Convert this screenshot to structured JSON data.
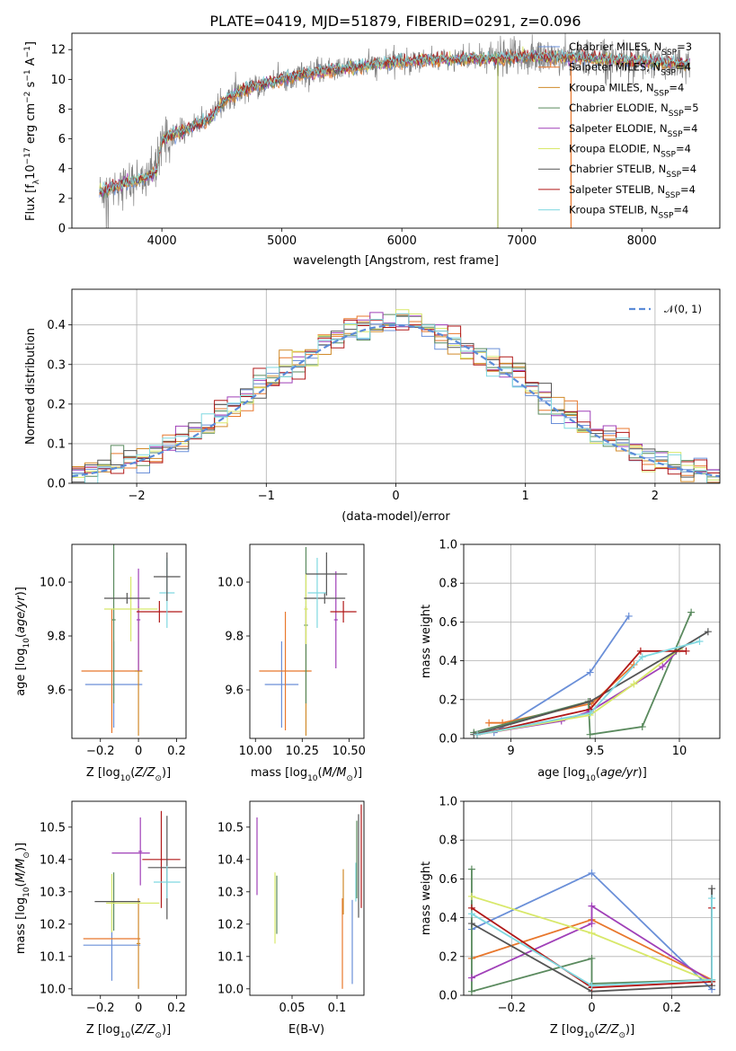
{
  "title": "PLATE=0419, MJD=51879, FIBERID=0291, z=0.096",
  "colors": {
    "Chabrier MILES": "#6a8fd8",
    "Salpeter MILES": "#e8772c",
    "Kroupa MILES": "#d08a2a",
    "Chabrier ELODIE": "#5a8a5e",
    "Salpeter ELODIE": "#a040b8",
    "Kroupa ELODIE": "#d8e86a",
    "Chabrier STELIB": "#555555",
    "Salpeter STELIB": "#b01818",
    "Kroupa STELIB": "#7fd8e0",
    "data": "#808080",
    "gaussian": "#5b8bd8"
  },
  "chart_data": [
    {
      "type": "line",
      "id": "spectrum",
      "xlabel": "wavelength [Angstrom, rest frame]",
      "ylabel": "Flux [f_λ10^-17 erg cm^-2 s^-1 A^-1]",
      "xlim": [
        3250,
        8650
      ],
      "ylim": [
        0,
        13.1
      ],
      "xticks": [
        4000,
        5000,
        6000,
        7000,
        8000
      ],
      "yticks": [
        0,
        2,
        4,
        6,
        8,
        10,
        12
      ],
      "continuum": {
        "x": [
          3480,
          3550,
          3650,
          3750,
          3850,
          3950,
          4000,
          4100,
          4200,
          4300,
          4400,
          4500,
          4600,
          4700,
          4800,
          4900,
          5000,
          5100,
          5200,
          5300,
          5400,
          5500,
          5600,
          5700,
          5800,
          5900,
          6000,
          6200,
          6400,
          6600,
          6800,
          7000,
          7200,
          7400,
          7600,
          7800,
          8000,
          8200,
          8400
        ],
        "y": [
          2.4,
          2.6,
          2.9,
          3.1,
          3.4,
          3.7,
          5.9,
          6.3,
          6.6,
          7.0,
          7.3,
          8.4,
          9.0,
          9.3,
          9.6,
          9.8,
          10.0,
          10.2,
          10.4,
          10.5,
          10.6,
          10.7,
          10.8,
          10.9,
          11.0,
          11.1,
          11.2,
          11.3,
          11.3,
          11.4,
          11.4,
          11.5,
          11.5,
          11.5,
          11.4,
          11.3,
          11.2,
          11.1,
          11.0
        ]
      },
      "legend": [
        {
          "name": "Chabrier MILES, N_SSP=3",
          "label": "Chabrier MILES, N",
          "sub": "SSP",
          "tail": "=3",
          "color": "#6a8fd8"
        },
        {
          "name": "Salpeter MILES, N_SSP=4",
          "label": "Salpeter MILES, N",
          "sub": "SSP",
          "tail": "=4",
          "color": "#e8772c"
        },
        {
          "name": "Kroupa MILES, N_SSP=4",
          "label": "Kroupa MILES, N",
          "sub": "SSP",
          "tail": "=4",
          "color": "#d08a2a"
        },
        {
          "name": "Chabrier ELODIE, N_SSP=5",
          "label": "Chabrier ELODIE, N",
          "sub": "SSP",
          "tail": "=5",
          "color": "#5a8a5e"
        },
        {
          "name": "Salpeter ELODIE, N_SSP=4",
          "label": "Salpeter ELODIE, N",
          "sub": "SSP",
          "tail": "=4",
          "color": "#a040b8"
        },
        {
          "name": "Kroupa ELODIE, N_SSP=4",
          "label": "Kroupa ELODIE, N",
          "sub": "SSP",
          "tail": "=4",
          "color": "#d8e86a"
        },
        {
          "name": "Chabrier STELIB, N_SSP=4",
          "label": "Chabrier STELIB, N",
          "sub": "SSP",
          "tail": "=4",
          "color": "#555555"
        },
        {
          "name": "Salpeter STELIB, N_SSP=4",
          "label": "Salpeter STELIB, N",
          "sub": "SSP",
          "tail": "=4",
          "color": "#b01818"
        },
        {
          "name": "Kroupa STELIB, N_SSP=4",
          "label": "Kroupa STELIB, N",
          "sub": "SSP",
          "tail": "=4",
          "color": "#7fd8e0"
        }
      ],
      "spikes": [
        {
          "x": 6800,
          "color": "#a8b85a"
        },
        {
          "x": 7410,
          "color": "#e8772c"
        }
      ]
    },
    {
      "type": "histogram",
      "id": "residuals",
      "xlabel": "(data-model)/error",
      "ylabel": "Normed distribution",
      "xlim": [
        -2.5,
        2.5
      ],
      "ylim": [
        0,
        0.49
      ],
      "xticks": [
        -2,
        -1,
        0,
        1,
        2
      ],
      "yticks": [
        0.0,
        0.1,
        0.2,
        0.3,
        0.4
      ],
      "bin_width": 0.1,
      "grid": true,
      "legend": {
        "label": "N(0,1)",
        "placement": "top-right"
      }
    },
    {
      "type": "scatter",
      "id": "age_vs_Z",
      "xlabel": "Z [log10(Z/Z⊙)]",
      "ylabel": "age [log10(age/yr)]",
      "xlim": [
        -0.35,
        0.25
      ],
      "ylim": [
        9.42,
        10.14
      ],
      "xticks": [
        -0.2,
        0.0,
        0.2
      ],
      "yticks": [
        9.6,
        9.8,
        10.0
      ],
      "points": [
        {
          "model": "Chabrier MILES",
          "x": -0.13,
          "xerr": 0.15,
          "y": 9.62,
          "yerr": 0.16
        },
        {
          "model": "Salpeter MILES",
          "x": -0.14,
          "xerr": 0.16,
          "y": 9.67,
          "yerr": 0.23
        },
        {
          "model": "Kroupa MILES",
          "x": 0.0,
          "xerr": 0.02,
          "y": 9.67,
          "yerr": 0.24
        },
        {
          "model": "Chabrier ELODIE",
          "x": -0.13,
          "xerr": 0.01,
          "y": 9.86,
          "yerr": 0.31
        },
        {
          "model": "Salpeter ELODIE",
          "x": 0.0,
          "xerr": 0.01,
          "y": 9.86,
          "yerr": 0.19
        },
        {
          "model": "Kroupa ELODIE",
          "x": -0.04,
          "xerr": 0.14,
          "y": 9.9,
          "yerr": 0.12
        },
        {
          "model": "Chabrier STELIB",
          "x": -0.06,
          "xerr": 0.12,
          "y": 9.94,
          "yerr": 0.02
        },
        {
          "model": "Salpeter STELIB",
          "x": 0.11,
          "xerr": 0.12,
          "y": 9.89,
          "yerr": 0.04
        },
        {
          "model": "Kroupa STELIB",
          "x": 0.15,
          "xerr": 0.04,
          "y": 9.96,
          "yerr": 0.13
        },
        {
          "model": "Chabrier STELIB",
          "x": 0.15,
          "xerr": 0.07,
          "y": 10.02,
          "yerr": 0.09
        }
      ]
    },
    {
      "type": "scatter",
      "id": "age_vs_mass",
      "xlabel": "mass [log10(M/M⊙)]",
      "ylabel": "",
      "xlim": [
        9.97,
        10.58
      ],
      "ylim": [
        9.42,
        10.14
      ],
      "xticks": [
        10.0,
        10.25,
        10.5
      ],
      "yticks": [
        9.6,
        9.8,
        10.0
      ],
      "points": [
        {
          "model": "Chabrier MILES",
          "x": 10.14,
          "xerr": 0.09,
          "y": 9.62,
          "yerr": 0.16
        },
        {
          "model": "Salpeter MILES",
          "x": 10.16,
          "xerr": 0.14,
          "y": 9.67,
          "yerr": 0.22
        },
        {
          "model": "Kroupa MILES",
          "x": 10.27,
          "xerr": 0.01,
          "y": 9.67,
          "yerr": 0.24
        },
        {
          "model": "Chabrier ELODIE",
          "x": 10.27,
          "xerr": 0.01,
          "y": 9.84,
          "yerr": 0.29
        },
        {
          "model": "Salpeter ELODIE",
          "x": 10.43,
          "xerr": 0.01,
          "y": 9.86,
          "yerr": 0.18
        },
        {
          "model": "Kroupa ELODIE",
          "x": 10.27,
          "xerr": 0.01,
          "y": 9.9,
          "yerr": 0.13
        },
        {
          "model": "Chabrier STELIB",
          "x": 10.37,
          "xerr": 0.11,
          "y": 9.94,
          "yerr": 0.02
        },
        {
          "model": "Salpeter STELIB",
          "x": 10.47,
          "xerr": 0.07,
          "y": 9.89,
          "yerr": 0.04
        },
        {
          "model": "Kroupa STELIB",
          "x": 10.33,
          "xerr": 0.05,
          "y": 9.96,
          "yerr": 0.13
        },
        {
          "model": "Chabrier STELIB",
          "x": 10.38,
          "xerr": 0.11,
          "y": 10.03,
          "yerr": 0.08
        }
      ]
    },
    {
      "type": "line",
      "id": "weight_vs_age",
      "xlabel": "age [log10(age/yr)]",
      "ylabel": "mass weight",
      "xlim": [
        8.72,
        10.24
      ],
      "ylim": [
        0.0,
        1.0
      ],
      "xticks": [
        9.0,
        9.5,
        10.0
      ],
      "yticks": [
        0.0,
        0.2,
        0.4,
        0.6,
        0.8,
        1.0
      ],
      "grid": true,
      "series": [
        {
          "model": "Chabrier MILES",
          "x": [
            8.9,
            9.47,
            9.7
          ],
          "y": [
            0.03,
            0.34,
            0.63
          ]
        },
        {
          "model": "Salpeter MILES",
          "x": [
            8.87,
            8.95,
            9.48,
            9.73
          ],
          "y": [
            0.08,
            0.08,
            0.18,
            0.38
          ]
        },
        {
          "model": "Chabrier ELODIE",
          "x": [
            8.78,
            9.46,
            9.47,
            9.78,
            10.07
          ],
          "y": [
            0.03,
            0.19,
            0.02,
            0.06,
            0.65
          ]
        },
        {
          "model": "Salpeter ELODIE",
          "x": [
            8.8,
            9.3,
            9.47,
            9.9,
            10.0
          ],
          "y": [
            0.02,
            0.09,
            0.14,
            0.37,
            0.46
          ]
        },
        {
          "model": "Kroupa ELODIE",
          "x": [
            8.8,
            9.47,
            9.73,
            10.0
          ],
          "y": [
            0.02,
            0.12,
            0.28,
            0.46
          ]
        },
        {
          "model": "Chabrier STELIB",
          "x": [
            8.78,
            9.47,
            9.98,
            10.17
          ],
          "y": [
            0.02,
            0.19,
            0.45,
            0.55
          ]
        },
        {
          "model": "Salpeter STELIB",
          "x": [
            8.8,
            9.47,
            9.77,
            10.04
          ],
          "y": [
            0.02,
            0.15,
            0.45,
            0.45
          ]
        },
        {
          "model": "Kroupa STELIB",
          "x": [
            8.8,
            9.47,
            9.78,
            10.12
          ],
          "y": [
            0.02,
            0.13,
            0.42,
            0.5
          ]
        }
      ]
    },
    {
      "type": "scatter",
      "id": "mass_vs_Z",
      "xlabel": "Z [log10(Z/Z⊙)]",
      "ylabel": "mass [log10(M/M⊙)]",
      "xlim": [
        -0.35,
        0.25
      ],
      "ylim": [
        9.98,
        10.58
      ],
      "xticks": [
        -0.2,
        0.0,
        0.2
      ],
      "yticks": [
        10.0,
        10.1,
        10.2,
        10.3,
        10.4,
        10.5
      ],
      "points": [
        {
          "model": "Chabrier MILES",
          "x": -0.14,
          "xerr": 0.15,
          "y": 10.135,
          "yerr": 0.11
        },
        {
          "model": "Salpeter MILES",
          "x": -0.14,
          "xerr": 0.15,
          "y": 10.155,
          "yerr": 0.0
        },
        {
          "model": "Kroupa MILES",
          "x": 0.0,
          "xerr": 0.01,
          "y": 10.14,
          "yerr": 0.14
        },
        {
          "model": "Chabrier ELODIE",
          "x": -0.13,
          "xerr": 0.01,
          "y": 10.27,
          "yerr": 0.09
        },
        {
          "model": "Salpeter ELODIE",
          "x": 0.01,
          "xerr": 0.01,
          "y": 10.425,
          "yerr": 0.105
        },
        {
          "model": "Salpeter ELODIE",
          "x": -0.04,
          "xerr": 0.1,
          "y": 10.42,
          "yerr": 0.0
        },
        {
          "model": "Kroupa ELODIE",
          "x": -0.14,
          "xerr": 0.01,
          "y": 10.265,
          "yerr": 0.09
        },
        {
          "model": "Kroupa ELODIE",
          "x": -0.03,
          "xerr": 0.14,
          "y": 10.265,
          "yerr": 0.0
        },
        {
          "model": "Chabrier STELIB",
          "x": -0.11,
          "xerr": 0.12,
          "y": 10.27,
          "yerr": 0.0
        },
        {
          "model": "Salpeter STELIB",
          "x": 0.12,
          "xerr": 0.1,
          "y": 10.4,
          "yerr": 0.15
        },
        {
          "model": "Chabrier STELIB",
          "x": 0.15,
          "xerr": 0.1,
          "y": 10.375,
          "yerr": 0.16
        },
        {
          "model": "Kroupa STELIB",
          "x": 0.15,
          "xerr": 0.07,
          "y": 10.33,
          "yerr": 0.05
        }
      ]
    },
    {
      "type": "scatter",
      "id": "mass_vs_ebv",
      "xlabel": "E(B-V)",
      "ylabel": "",
      "xlim": [
        0.003,
        0.13
      ],
      "ylim": [
        9.98,
        10.58
      ],
      "xticks": [
        0.05,
        0.1
      ],
      "yticks": [
        10.0,
        10.1,
        10.2,
        10.3,
        10.4,
        10.5
      ],
      "points": [
        {
          "model": "Salpeter ELODIE",
          "x": 0.011,
          "xerr": 0.0,
          "y": 10.41,
          "yerr": 0.12
        },
        {
          "model": "Kroupa ELODIE",
          "x": 0.031,
          "xerr": 0.0,
          "y": 10.25,
          "yerr": 0.11
        },
        {
          "model": "Chabrier ELODIE",
          "x": 0.033,
          "xerr": 0.0,
          "y": 10.26,
          "yerr": 0.09
        },
        {
          "model": "Salpeter MILES",
          "x": 0.106,
          "xerr": 0.0,
          "y": 10.14,
          "yerr": 0.14
        },
        {
          "model": "Kroupa MILES",
          "x": 0.107,
          "xerr": 0.0,
          "y": 10.3,
          "yerr": 0.07
        },
        {
          "model": "Chabrier MILES",
          "x": 0.117,
          "xerr": 0.0,
          "y": 10.145,
          "yerr": 0.13
        },
        {
          "model": "Kroupa STELIB",
          "x": 0.121,
          "xerr": 0.0,
          "y": 10.33,
          "yerr": 0.06
        },
        {
          "model": "Chabrier ELODIE",
          "x": 0.122,
          "xerr": 0.0,
          "y": 10.4,
          "yerr": 0.12
        },
        {
          "model": "Chabrier STELIB",
          "x": 0.124,
          "xerr": 0.0,
          "y": 10.38,
          "yerr": 0.16
        },
        {
          "model": "Salpeter STELIB",
          "x": 0.127,
          "xerr": 0.0,
          "y": 10.41,
          "yerr": 0.16
        }
      ]
    },
    {
      "type": "line",
      "id": "weight_vs_Z",
      "xlabel": "Z [log10(Z/Z⊙)]",
      "ylabel": "mass weight",
      "xlim": [
        -0.32,
        0.32
      ],
      "ylim": [
        0.0,
        1.0
      ],
      "xticks": [
        -0.2,
        0.0,
        0.2
      ],
      "yticks": [
        0.0,
        0.2,
        0.4,
        0.6,
        0.8,
        1.0
      ],
      "grid": true,
      "series": [
        {
          "model": "Chabrier MILES",
          "x": [
            -0.3,
            0.0,
            0.3
          ],
          "y": [
            0.34,
            0.63,
            0.03
          ]
        },
        {
          "model": "Salpeter MILES",
          "x": [
            -0.3,
            0.0,
            0.3
          ],
          "y": [
            0.19,
            0.39,
            0.08
          ]
        },
        {
          "model": "Chabrier ELODIE",
          "x": [
            -0.3,
            -0.3,
            0.0,
            0.0,
            0.3
          ],
          "y": [
            0.65,
            0.02,
            0.19,
            0.06,
            0.08
          ]
        },
        {
          "model": "Salpeter ELODIE",
          "x": [
            -0.3,
            0.0,
            0.0,
            0.3
          ],
          "y": [
            0.09,
            0.37,
            0.46,
            0.07
          ]
        },
        {
          "model": "Kroupa ELODIE",
          "x": [
            -0.3,
            0.0,
            0.3
          ],
          "y": [
            0.51,
            0.32,
            0.07
          ]
        },
        {
          "model": "Chabrier STELIB",
          "x": [
            -0.3,
            0.0,
            0.3,
            0.3
          ],
          "y": [
            0.37,
            0.02,
            0.05,
            0.55
          ]
        },
        {
          "model": "Salpeter STELIB",
          "x": [
            -0.3,
            0.0,
            0.3,
            0.3
          ],
          "y": [
            0.45,
            0.04,
            0.07,
            0.45
          ]
        },
        {
          "model": "Kroupa STELIB",
          "x": [
            -0.3,
            0.0,
            0.3,
            0.3
          ],
          "y": [
            0.42,
            0.05,
            0.08,
            0.5
          ]
        }
      ]
    }
  ]
}
